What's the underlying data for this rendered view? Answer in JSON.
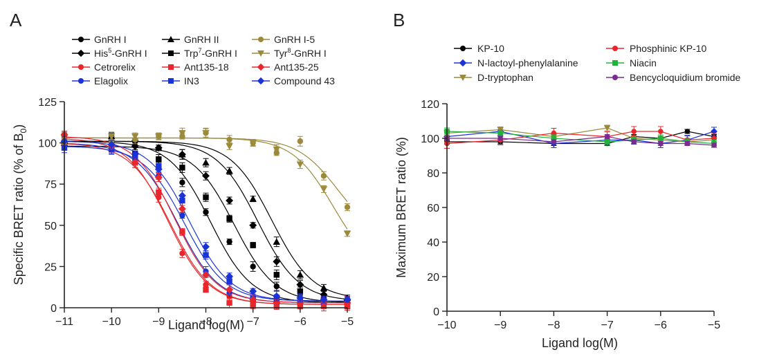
{
  "chart_data": [
    {
      "panel": "A",
      "type": "line",
      "xlabel": "Ligand log(M)",
      "ylabel": "Specific BRET ratio (% of B",
      "ylabel_subscript": "0",
      "ylabel_suffix": ")",
      "xlim": [
        -11,
        -5
      ],
      "ylim": [
        0,
        125
      ],
      "xticks": [
        "−11",
        "−10",
        "−9",
        "−8",
        "−7",
        "−6",
        "−5"
      ],
      "xtick_values": [
        -11,
        -10,
        -9,
        -8,
        -7,
        -6,
        -5
      ],
      "yticks": [
        "0",
        "25",
        "50",
        "75",
        "100",
        "125"
      ],
      "ytick_values": [
        0,
        25,
        50,
        75,
        100,
        125
      ],
      "grid": false,
      "legend": "top",
      "x": [
        -11,
        -10,
        -9.5,
        -9,
        -8.5,
        -8,
        -7.5,
        -7,
        -6.5,
        -6,
        -5.5,
        -5
      ],
      "series": [
        {
          "name": "GnRH I",
          "legend": [
            "GnRH I"
          ],
          "color": "#000000",
          "marker": "circle",
          "top": 101,
          "bottom": 3,
          "logic50": -7.9,
          "values": [
            101,
            104,
            101,
            90,
            76,
            58,
            40,
            25,
            13,
            6,
            4,
            3
          ]
        },
        {
          "name": "His5-GnRH I",
          "legend": [
            "His",
            "5",
            "-GnRH I"
          ],
          "color": "#000000",
          "marker": "diamond",
          "top": 101,
          "bottom": 4,
          "logic50": -6.9,
          "values": [
            100,
            101,
            98,
            97,
            93,
            80,
            65,
            50,
            28,
            14,
            8,
            5
          ]
        },
        {
          "name": "Cetrorelix",
          "legend": [
            "Cetrorelix"
          ],
          "color": "#e8262b",
          "marker": "circle",
          "top": 103,
          "bottom": 2,
          "logic50": -8.8,
          "values": [
            104,
            97,
            90,
            67,
            33,
            14,
            7,
            4,
            3,
            3,
            3,
            4
          ]
        },
        {
          "name": "Elagolix",
          "legend": [
            "Elagolix"
          ],
          "color": "#1a33d6",
          "marker": "circle",
          "top": 100,
          "bottom": 3,
          "logic50": -8.6,
          "values": [
            98,
            96,
            92,
            80,
            56,
            22,
            9,
            4,
            3,
            3,
            3,
            3
          ]
        },
        {
          "name": "GnRH II",
          "legend": [
            "GnRH II"
          ],
          "color": "#000000",
          "marker": "triangle-up",
          "top": 101,
          "bottom": 5,
          "logic50": -6.6,
          "values": [
            100,
            104,
            103,
            97,
            93,
            88,
            83,
            66,
            40,
            20,
            12,
            6
          ]
        },
        {
          "name": "Trp7-GnRH I",
          "legend": [
            "Trp",
            "7",
            "-GnRH I"
          ],
          "color": "#000000",
          "marker": "square",
          "top": 98,
          "bottom": 3,
          "logic50": -7.4,
          "values": [
            100,
            97,
            93,
            90,
            85,
            67,
            54,
            38,
            20,
            10,
            5,
            1
          ]
        },
        {
          "name": "Ant135-18",
          "legend": [
            "Ant135-18"
          ],
          "color": "#e8262b",
          "marker": "square",
          "top": 100,
          "bottom": 2,
          "logic50": -8.75,
          "values": [
            100,
            96,
            88,
            70,
            46,
            11,
            3,
            2,
            1,
            1,
            1,
            1
          ]
        },
        {
          "name": "IN3",
          "legend": [
            "IN3"
          ],
          "color": "#1a33d6",
          "marker": "square",
          "top": 98,
          "bottom": 4,
          "logic50": -8.45,
          "values": [
            97,
            96,
            92,
            86,
            65,
            32,
            16,
            6,
            5,
            4,
            4,
            4
          ]
        },
        {
          "name": "GnRH I-5",
          "legend": [
            "GnRH I-5"
          ],
          "color": "#9c8a3c",
          "marker": "circle",
          "top": 103,
          "bottom": 40,
          "logic50": -5.2,
          "values": [
            101,
            101,
            102,
            104,
            104,
            106,
            102,
            100,
            94,
            101,
            80,
            61
          ]
        },
        {
          "name": "Tyr8-GnRH I",
          "legend": [
            "Tyr",
            "8",
            "-GnRH I"
          ],
          "color": "#9c8a3c",
          "marker": "triangle-down",
          "top": 103,
          "bottom": 20,
          "logic50": -5.3,
          "values": [
            103,
            104,
            104,
            104,
            106,
            106,
            98,
            100,
            96,
            87,
            72,
            45
          ]
        },
        {
          "name": "Ant135-25",
          "legend": [
            "Ant135-25"
          ],
          "color": "#e8262b",
          "marker": "diamond",
          "top": 104,
          "bottom": 3,
          "logic50": -8.65,
          "values": [
            105,
            98,
            88,
            79,
            60,
            20,
            11,
            5,
            3,
            3,
            3,
            3
          ]
        },
        {
          "name": "Compound 43",
          "legend": [
            "Compound 43"
          ],
          "color": "#1a33d6",
          "marker": "diamond",
          "top": 101,
          "bottom": 4,
          "logic50": -8.35,
          "values": [
            101,
            99,
            93,
            84,
            68,
            37,
            19,
            10,
            7,
            6,
            5,
            5
          ]
        }
      ]
    },
    {
      "panel": "B",
      "type": "line",
      "xlabel": "Ligand log(M)",
      "ylabel": "Maximum BRET ratio (%)",
      "xlim": [
        -10,
        -5
      ],
      "ylim": [
        0,
        120
      ],
      "xticks": [
        "−10",
        "−9",
        "−8",
        "−7",
        "−6",
        "−5"
      ],
      "xtick_values": [
        -10,
        -9,
        -8,
        -7,
        -6,
        -5
      ],
      "yticks": [
        "0",
        "20",
        "40",
        "60",
        "80",
        "100",
        "120"
      ],
      "ytick_values": [
        0,
        20,
        40,
        60,
        80,
        100,
        120
      ],
      "grid": false,
      "legend": "top",
      "x": [
        -10,
        -9,
        -8,
        -7,
        -6.5,
        -6,
        -5.5,
        -5
      ],
      "series": [
        {
          "name": "KP-10",
          "color": "#000000",
          "marker": "circle",
          "values": [
            98,
            98,
            97,
            97,
            101,
            100,
            104,
            101
          ]
        },
        {
          "name": "N-lactoyl-phenylalanine",
          "color": "#1a33d6",
          "marker": "diamond",
          "values": [
            101,
            104,
            97,
            99,
            99,
            97,
            99,
            104
          ]
        },
        {
          "name": "D-tryptophan",
          "color": "#9c8a3c",
          "marker": "triangle-down",
          "values": [
            103,
            105,
            101,
            106,
            100,
            99,
            98,
            99
          ]
        },
        {
          "name": "Phosphinic KP-10",
          "color": "#e8262b",
          "marker": "circle",
          "values": [
            97,
            99,
            103,
            101,
            104,
            104,
            99,
            100
          ]
        },
        {
          "name": "Niacin",
          "color": "#22b13a",
          "marker": "square",
          "values": [
            104,
            103,
            100,
            98,
            99,
            100,
            98,
            97
          ]
        },
        {
          "name": "Bencycloquidium bromide",
          "color": "#7b2a8e",
          "marker": "circle",
          "values": [
            100,
            100,
            98,
            101,
            98,
            97,
            97,
            96
          ]
        }
      ]
    }
  ]
}
